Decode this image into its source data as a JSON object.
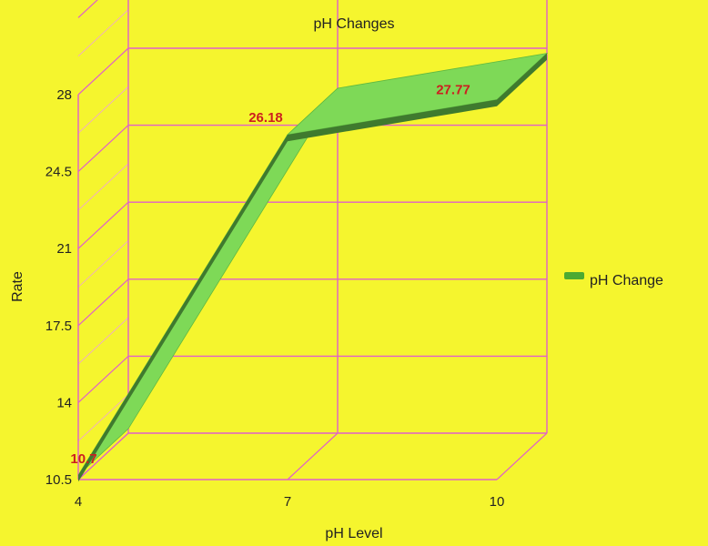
{
  "chart_data": {
    "type": "line",
    "title": "pH Changes",
    "xlabel": "pH Level",
    "ylabel": "Rate",
    "categories": [
      "4",
      "7",
      "10"
    ],
    "x": [
      4,
      7,
      10
    ],
    "series": [
      {
        "name": "pH Change",
        "values": [
          10.7,
          26.18,
          27.77
        ],
        "data_labels": [
          "10.7",
          "26.18",
          "27.77"
        ]
      }
    ],
    "ylim": [
      10.5,
      31.5
    ],
    "yticks": [
      "10.5",
      "14",
      "17.5",
      "21",
      "24.5",
      "28"
    ],
    "ytick_values": [
      10.5,
      14,
      17.5,
      21,
      24.5,
      28
    ],
    "grid": true,
    "legend_position": "right",
    "three_d": true
  },
  "colors": {
    "background": "#f5f52e",
    "grid": "#e060c8",
    "series_top": "#7ed957",
    "series_side": "#3f7a2e",
    "data_label": "#cc1f1f",
    "text": "#222222"
  }
}
